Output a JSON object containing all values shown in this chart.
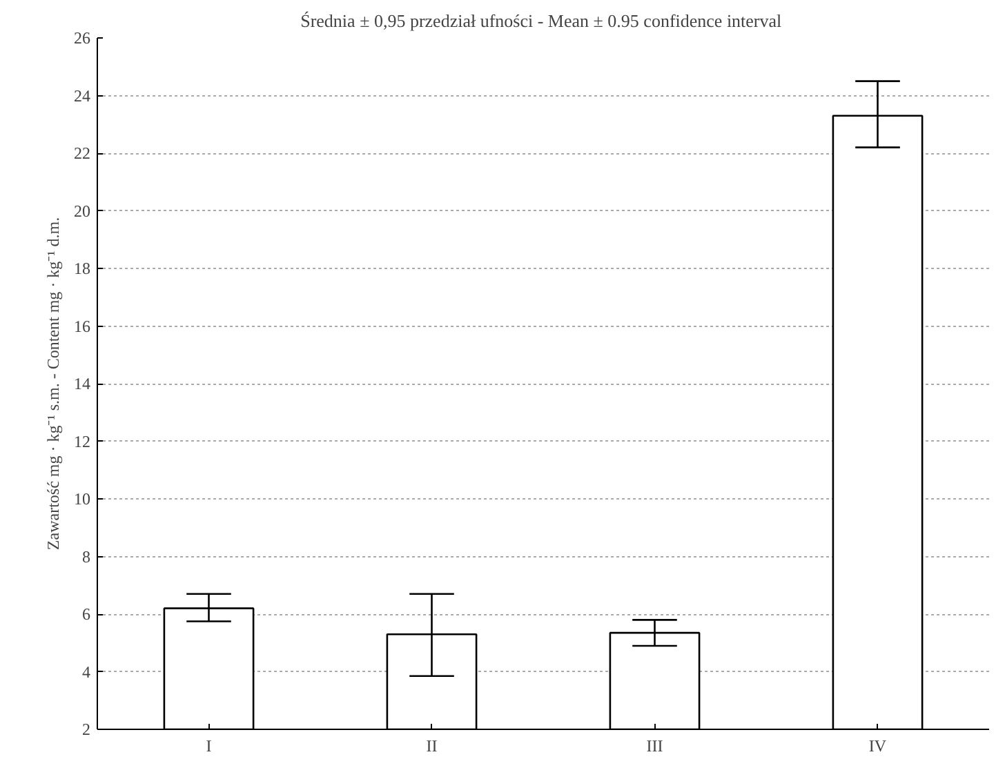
{
  "chart_data": {
    "type": "bar",
    "title": "Średnia ± 0,95 przedział ufności - Mean  ± 0.95 confidence interval",
    "ylabel": "Zawartość mg · kg⁻¹ s.m. - Content mg · kg⁻¹ d.m.",
    "categories": [
      "I",
      "II",
      "III",
      "IV"
    ],
    "values": [
      6.2,
      5.3,
      5.35,
      23.3
    ],
    "errors": [
      [
        5.75,
        6.7
      ],
      [
        3.85,
        6.7
      ],
      [
        4.9,
        5.8
      ],
      [
        22.2,
        24.5
      ]
    ],
    "color": "#ffffff",
    "ylim": [
      2,
      26
    ],
    "yticks": [
      2,
      4,
      6,
      8,
      10,
      12,
      14,
      16,
      18,
      20,
      22,
      24,
      26
    ],
    "grid": "y"
  }
}
